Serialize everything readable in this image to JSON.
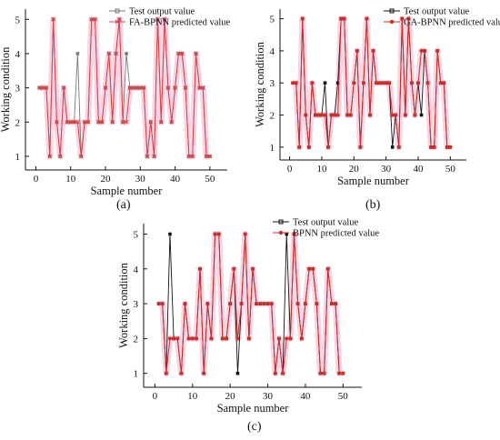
{
  "captions": [
    "(a)",
    "(b)",
    "(c)"
  ],
  "chart_data": [
    {
      "type": "line",
      "xlabel": "Sample number",
      "ylabel": "Working condition",
      "xlim": [
        -3,
        55
      ],
      "ylim": [
        0.6,
        5.3
      ],
      "xticks": [
        "0",
        "10",
        "20",
        "30",
        "40",
        "50"
      ],
      "yticks": [
        "1",
        "2",
        "3",
        "4",
        "5"
      ],
      "legend_position": "top-right",
      "x": [
        1,
        2,
        3,
        4,
        5,
        6,
        7,
        8,
        9,
        10,
        11,
        12,
        13,
        14,
        15,
        16,
        17,
        18,
        19,
        20,
        21,
        22,
        23,
        24,
        25,
        26,
        27,
        28,
        29,
        30,
        31,
        32,
        33,
        34,
        35,
        36,
        37,
        38,
        39,
        40,
        41,
        42,
        43,
        44,
        45,
        46,
        47,
        48,
        49,
        50
      ],
      "series": [
        {
          "name": "Test output value",
          "color": "#7a7a7a",
          "marker": "square",
          "values": [
            3,
            3,
            3,
            1,
            5,
            2,
            1,
            3,
            2,
            2,
            2,
            4,
            1,
            2,
            2,
            5,
            5,
            2,
            2,
            3,
            4,
            2,
            4,
            5,
            2,
            4,
            3,
            3,
            3,
            3,
            3,
            1,
            2,
            1,
            5,
            2,
            5,
            3,
            2,
            3,
            4,
            4,
            3,
            1,
            1,
            4,
            3,
            3,
            1,
            1
          ]
        },
        {
          "name": "FA-BPNN predicted value",
          "color": "#d64545",
          "marker": "x",
          "values": [
            3,
            3,
            3,
            1,
            5,
            2,
            1,
            3,
            2,
            2,
            2,
            2,
            1,
            2,
            2,
            5,
            5,
            2,
            2,
            3,
            4,
            2,
            4,
            5,
            2,
            2,
            3,
            3,
            3,
            3,
            3,
            1,
            2,
            1,
            5,
            2,
            5,
            3,
            2,
            3,
            4,
            4,
            3,
            1,
            1,
            4,
            3,
            3,
            1,
            1
          ]
        }
      ]
    },
    {
      "type": "line",
      "xlabel": "Sample number",
      "ylabel": "Working condition",
      "xlim": [
        -3,
        55
      ],
      "ylim": [
        0.6,
        5.3
      ],
      "xticks": [
        "0",
        "10",
        "20",
        "30",
        "40",
        "50"
      ],
      "yticks": [
        "1",
        "2",
        "3",
        "4",
        "5"
      ],
      "legend_position": "top-right",
      "x": [
        1,
        2,
        3,
        4,
        5,
        6,
        7,
        8,
        9,
        10,
        11,
        12,
        13,
        14,
        15,
        16,
        17,
        18,
        19,
        20,
        21,
        22,
        23,
        24,
        25,
        26,
        27,
        28,
        29,
        30,
        31,
        32,
        33,
        34,
        35,
        36,
        37,
        38,
        39,
        40,
        41,
        42,
        43,
        44,
        45,
        46,
        47,
        48,
        49,
        50
      ],
      "series": [
        {
          "name": "Test output value",
          "color": "#111111",
          "marker": "square",
          "values": [
            3,
            3,
            1,
            5,
            2,
            1,
            3,
            2,
            2,
            2,
            3,
            1,
            2,
            2,
            3,
            5,
            5,
            2,
            2,
            3,
            4,
            1,
            3,
            5,
            2,
            4,
            3,
            3,
            3,
            3,
            3,
            1,
            2,
            1,
            5,
            2,
            5,
            3,
            2,
            3,
            2,
            4,
            3,
            1,
            1,
            4,
            3,
            3,
            1,
            1
          ]
        },
        {
          "name": "GA-BPNN predicted value",
          "color": "#c8322a",
          "marker": "circle",
          "values": [
            3,
            3,
            1,
            5,
            2,
            1,
            3,
            2,
            2,
            2,
            2,
            1,
            2,
            2,
            2,
            5,
            5,
            2,
            2,
            3,
            4,
            1,
            3,
            5,
            2,
            4,
            3,
            3,
            3,
            3,
            3,
            2,
            2,
            1,
            5,
            2,
            5,
            3,
            2,
            3,
            4,
            4,
            3,
            1,
            1,
            4,
            3,
            3,
            1,
            1
          ]
        }
      ]
    },
    {
      "type": "line",
      "xlabel": "Sample number",
      "ylabel": "Working condition",
      "xlim": [
        -3,
        55
      ],
      "ylim": [
        0.6,
        5.3
      ],
      "xticks": [
        "0",
        "10",
        "20",
        "30",
        "40",
        "50"
      ],
      "yticks": [
        "1",
        "2",
        "3",
        "4",
        "5"
      ],
      "legend_position": "top-right",
      "x": [
        1,
        2,
        3,
        4,
        5,
        6,
        7,
        8,
        9,
        10,
        11,
        12,
        13,
        14,
        15,
        16,
        17,
        18,
        19,
        20,
        21,
        22,
        23,
        24,
        25,
        26,
        27,
        28,
        29,
        30,
        31,
        32,
        33,
        34,
        35,
        36,
        37,
        38,
        39,
        40,
        41,
        42,
        43,
        44,
        45,
        46,
        47,
        48,
        49,
        50
      ],
      "series": [
        {
          "name": "Test output value",
          "color": "#111111",
          "marker": "square",
          "values": [
            3,
            3,
            1,
            5,
            2,
            2,
            1,
            3,
            2,
            2,
            2,
            4,
            1,
            3,
            2,
            5,
            5,
            2,
            2,
            3,
            4,
            1,
            3,
            5,
            2,
            4,
            3,
            3,
            3,
            3,
            3,
            1,
            2,
            1,
            5,
            2,
            5,
            3,
            2,
            3,
            4,
            4,
            3,
            1,
            1,
            4,
            3,
            3,
            1,
            1
          ]
        },
        {
          "name": "BPNN predicted value",
          "color": "#c8322a",
          "marker": "circle",
          "values": [
            3,
            3,
            1,
            2,
            2,
            2,
            1,
            3,
            2,
            2,
            2,
            4,
            1,
            3,
            2,
            5,
            5,
            2,
            2,
            3,
            4,
            2,
            3,
            5,
            2,
            4,
            3,
            3,
            3,
            3,
            3,
            1,
            2,
            1,
            2,
            2,
            5,
            3,
            2,
            3,
            4,
            4,
            3,
            1,
            1,
            4,
            3,
            3,
            1,
            1
          ]
        }
      ]
    }
  ]
}
